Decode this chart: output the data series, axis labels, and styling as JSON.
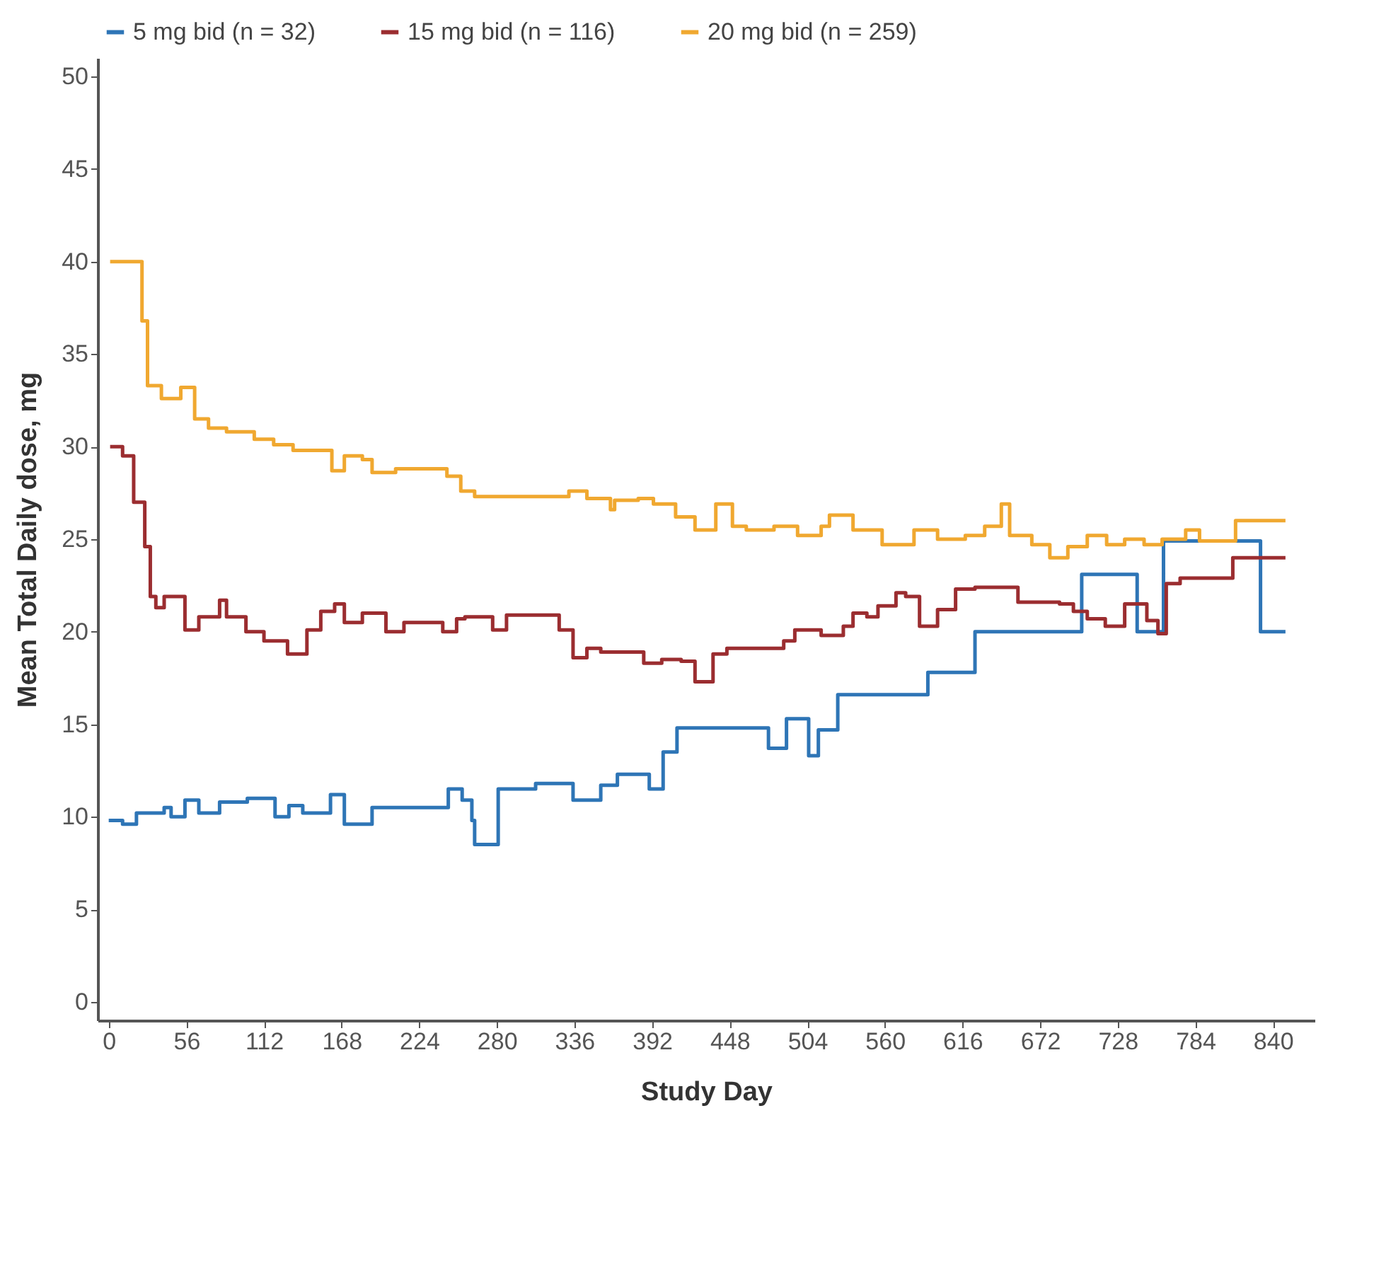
{
  "chart_data": {
    "type": "step",
    "xlabel": "Study Day",
    "ylabel": "Mean Total Daily dose, mg",
    "xlim": [
      -8,
      870
    ],
    "ylim": [
      -1,
      51
    ],
    "xticks": [
      0,
      56,
      112,
      168,
      224,
      280,
      336,
      392,
      448,
      504,
      560,
      616,
      672,
      728,
      784,
      840
    ],
    "yticks": [
      0,
      5,
      10,
      15,
      20,
      25,
      30,
      35,
      40,
      45,
      50
    ],
    "grid": false,
    "legend": "top",
    "line_style": "solid",
    "marker": "none",
    "series": [
      {
        "name": "5 mg bid (n = 32)",
        "color": "#2e75b6",
        "x": [
          0,
          10,
          20,
          40,
          45,
          55,
          65,
          80,
          100,
          120,
          130,
          140,
          160,
          170,
          190,
          245,
          255,
          262,
          264,
          281,
          308,
          335,
          355,
          367,
          390,
          400,
          410,
          417,
          476,
          489,
          505,
          512,
          526,
          591,
          625,
          702,
          742,
          761,
          831,
          849
        ],
        "values": [
          9.8,
          9.6,
          10.2,
          10.5,
          10.0,
          10.9,
          10.2,
          10.8,
          11.0,
          10.0,
          10.6,
          10.2,
          11.2,
          9.6,
          10.5,
          11.5,
          10.9,
          9.8,
          8.5,
          11.5,
          11.8,
          10.9,
          11.7,
          12.3,
          11.5,
          13.5,
          14.8,
          14.8,
          13.7,
          15.3,
          13.3,
          14.7,
          16.6,
          17.8,
          20.0,
          23.1,
          20.0,
          24.9,
          20.0,
          20.0
        ]
      },
      {
        "name": "15 mg bid (n = 116)",
        "color": "#9b2d30",
        "x": [
          1,
          10,
          18,
          26,
          30,
          34,
          40,
          55,
          65,
          80,
          85,
          99,
          112,
          129,
          143,
          153,
          163,
          170,
          183,
          200,
          213,
          241,
          251,
          257,
          277,
          287,
          325,
          335,
          345,
          355,
          386,
          399,
          413,
          423,
          436,
          446,
          487,
          495,
          514,
          530,
          537,
          547,
          555,
          568,
          575,
          585,
          598,
          611,
          625,
          656,
          686,
          696,
          706,
          719,
          733,
          749,
          757,
          763,
          773,
          811,
          849
        ],
        "values": [
          30.0,
          29.5,
          27.0,
          24.6,
          21.9,
          21.3,
          21.9,
          20.1,
          20.8,
          21.7,
          20.8,
          20.0,
          19.5,
          18.8,
          20.1,
          21.1,
          21.5,
          20.5,
          21.0,
          20.0,
          20.5,
          20.0,
          20.7,
          20.8,
          20.1,
          20.9,
          20.1,
          18.6,
          19.1,
          18.9,
          18.3,
          18.5,
          18.4,
          17.3,
          18.8,
          19.1,
          19.5,
          20.1,
          19.8,
          20.3,
          21.0,
          20.8,
          21.4,
          22.1,
          21.9,
          20.3,
          21.2,
          22.3,
          22.4,
          21.6,
          21.5,
          21.1,
          20.7,
          20.3,
          21.5,
          20.6,
          19.9,
          22.6,
          22.9,
          24.0,
          24.0
        ]
      },
      {
        "name": "20 mg bid (n = 259)",
        "color": "#f0a830",
        "x": [
          1,
          8,
          24,
          28,
          38,
          52,
          62,
          72,
          85,
          105,
          119,
          133,
          161,
          170,
          183,
          190,
          207,
          244,
          254,
          264,
          332,
          345,
          362,
          365,
          382,
          393,
          409,
          423,
          438,
          450,
          460,
          480,
          497,
          514,
          520,
          537,
          558,
          581,
          598,
          618,
          632,
          644,
          650,
          666,
          679,
          692,
          706,
          720,
          733,
          747,
          760,
          777,
          787,
          813,
          849
        ],
        "values": [
          40.0,
          40.0,
          36.8,
          33.3,
          32.6,
          33.2,
          31.5,
          31.0,
          30.8,
          30.4,
          30.1,
          29.8,
          28.7,
          29.5,
          29.3,
          28.6,
          28.8,
          28.4,
          27.6,
          27.3,
          27.6,
          27.2,
          26.6,
          27.1,
          27.2,
          26.9,
          26.2,
          25.5,
          26.9,
          25.7,
          25.5,
          25.7,
          25.2,
          25.7,
          26.3,
          25.5,
          24.7,
          25.5,
          25.0,
          25.2,
          25.7,
          26.9,
          25.2,
          24.7,
          24.0,
          24.6,
          25.2,
          24.7,
          25.0,
          24.7,
          25.0,
          25.5,
          24.9,
          26.0,
          26.0
        ]
      }
    ]
  }
}
